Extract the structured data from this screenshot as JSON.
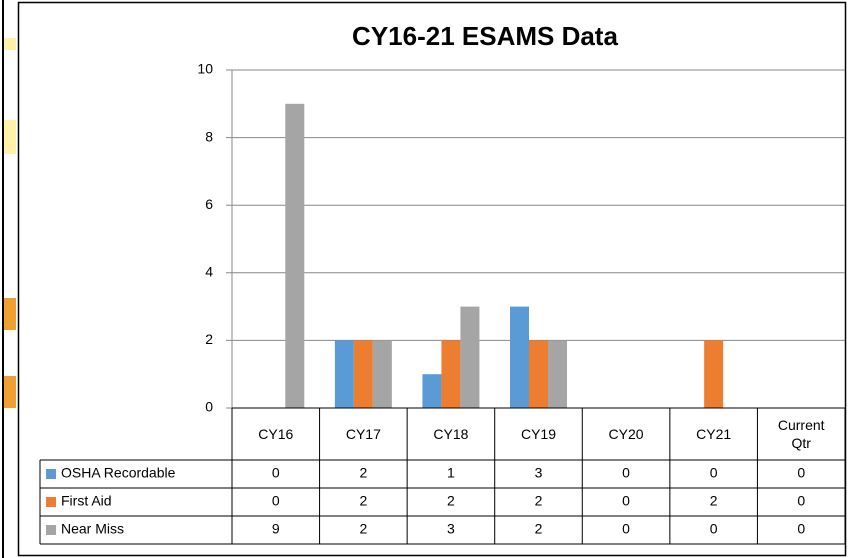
{
  "chart_data": {
    "type": "bar",
    "title": "CY16-21 ESAMS Data",
    "categories": [
      "CY16",
      "CY17",
      "CY18",
      "CY19",
      "CY20",
      "CY21",
      "Current Qtr"
    ],
    "series": [
      {
        "name": "OSHA Recordable",
        "color": "#5b9bd5",
        "values": [
          0,
          2,
          1,
          3,
          0,
          0,
          0
        ]
      },
      {
        "name": "First Aid",
        "color": "#ed7d31",
        "values": [
          0,
          2,
          2,
          2,
          0,
          2,
          0
        ]
      },
      {
        "name": "Near Miss",
        "color": "#a5a5a5",
        "values": [
          9,
          2,
          3,
          2,
          0,
          0,
          0
        ]
      }
    ],
    "ylim": [
      0,
      10
    ],
    "yticks": [
      0,
      2,
      4,
      6,
      8,
      10
    ],
    "grid": true,
    "data_table": true
  }
}
